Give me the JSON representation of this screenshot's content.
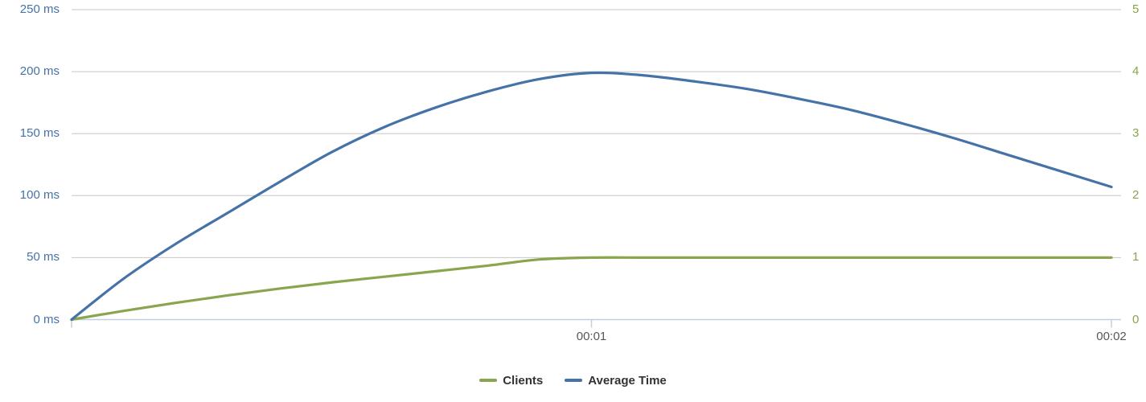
{
  "chart_data": {
    "type": "line",
    "title": "",
    "background_color": "#ffffff",
    "x": [
      0,
      0.1,
      0.2,
      0.3,
      0.4,
      0.5,
      0.6,
      0.7,
      0.8,
      0.9,
      1.0,
      1.1,
      1.2,
      1.3,
      1.4,
      1.5,
      1.6,
      1.7,
      1.8,
      1.9,
      2.0
    ],
    "x_axis": {
      "unit": "mm:ss",
      "range": [
        0,
        2
      ],
      "tick_marks": [
        0,
        1,
        2
      ],
      "tick_labels": [
        "00:01",
        "00:02"
      ],
      "tick_label_positions": [
        1,
        2
      ],
      "label_color": "#58585a",
      "line_color": "#c0d0e0"
    },
    "y_axis_left": {
      "tick_labels": [
        "0 ms",
        "50 ms",
        "100 ms",
        "150 ms",
        "200 ms",
        "250 ms"
      ],
      "range": [
        0,
        250
      ],
      "tick_interval": 50,
      "label_color": "#4572a7"
    },
    "y_axis_right": {
      "tick_labels": [
        "0",
        "1",
        "2",
        "3",
        "4",
        "5"
      ],
      "range": [
        0,
        5
      ],
      "tick_interval": 1,
      "label_color": "#89a54e"
    },
    "grid": {
      "show": true,
      "color": "#c6c6c6"
    },
    "legend": {
      "position": "bottom",
      "items": [
        {
          "label": "Clients",
          "color": "#89a54e"
        },
        {
          "label": "Average Time",
          "color": "#4572a7"
        }
      ]
    },
    "series": [
      {
        "name": "Clients",
        "color": "#89a54e",
        "y_axis": "right",
        "values": [
          0,
          0.14,
          0.27,
          0.39,
          0.5,
          0.6,
          0.69,
          0.78,
          0.87,
          0.97,
          1,
          1,
          1,
          1,
          1,
          1,
          1,
          1,
          1,
          1,
          1
        ]
      },
      {
        "name": "Average Time",
        "color": "#4572a7",
        "y_axis": "left",
        "values": [
          0,
          33,
          61,
          86,
          111,
          135,
          155,
          171,
          184,
          194,
          199,
          197,
          192,
          186,
          178,
          169,
          158,
          146,
          133,
          120,
          107
        ]
      }
    ]
  }
}
